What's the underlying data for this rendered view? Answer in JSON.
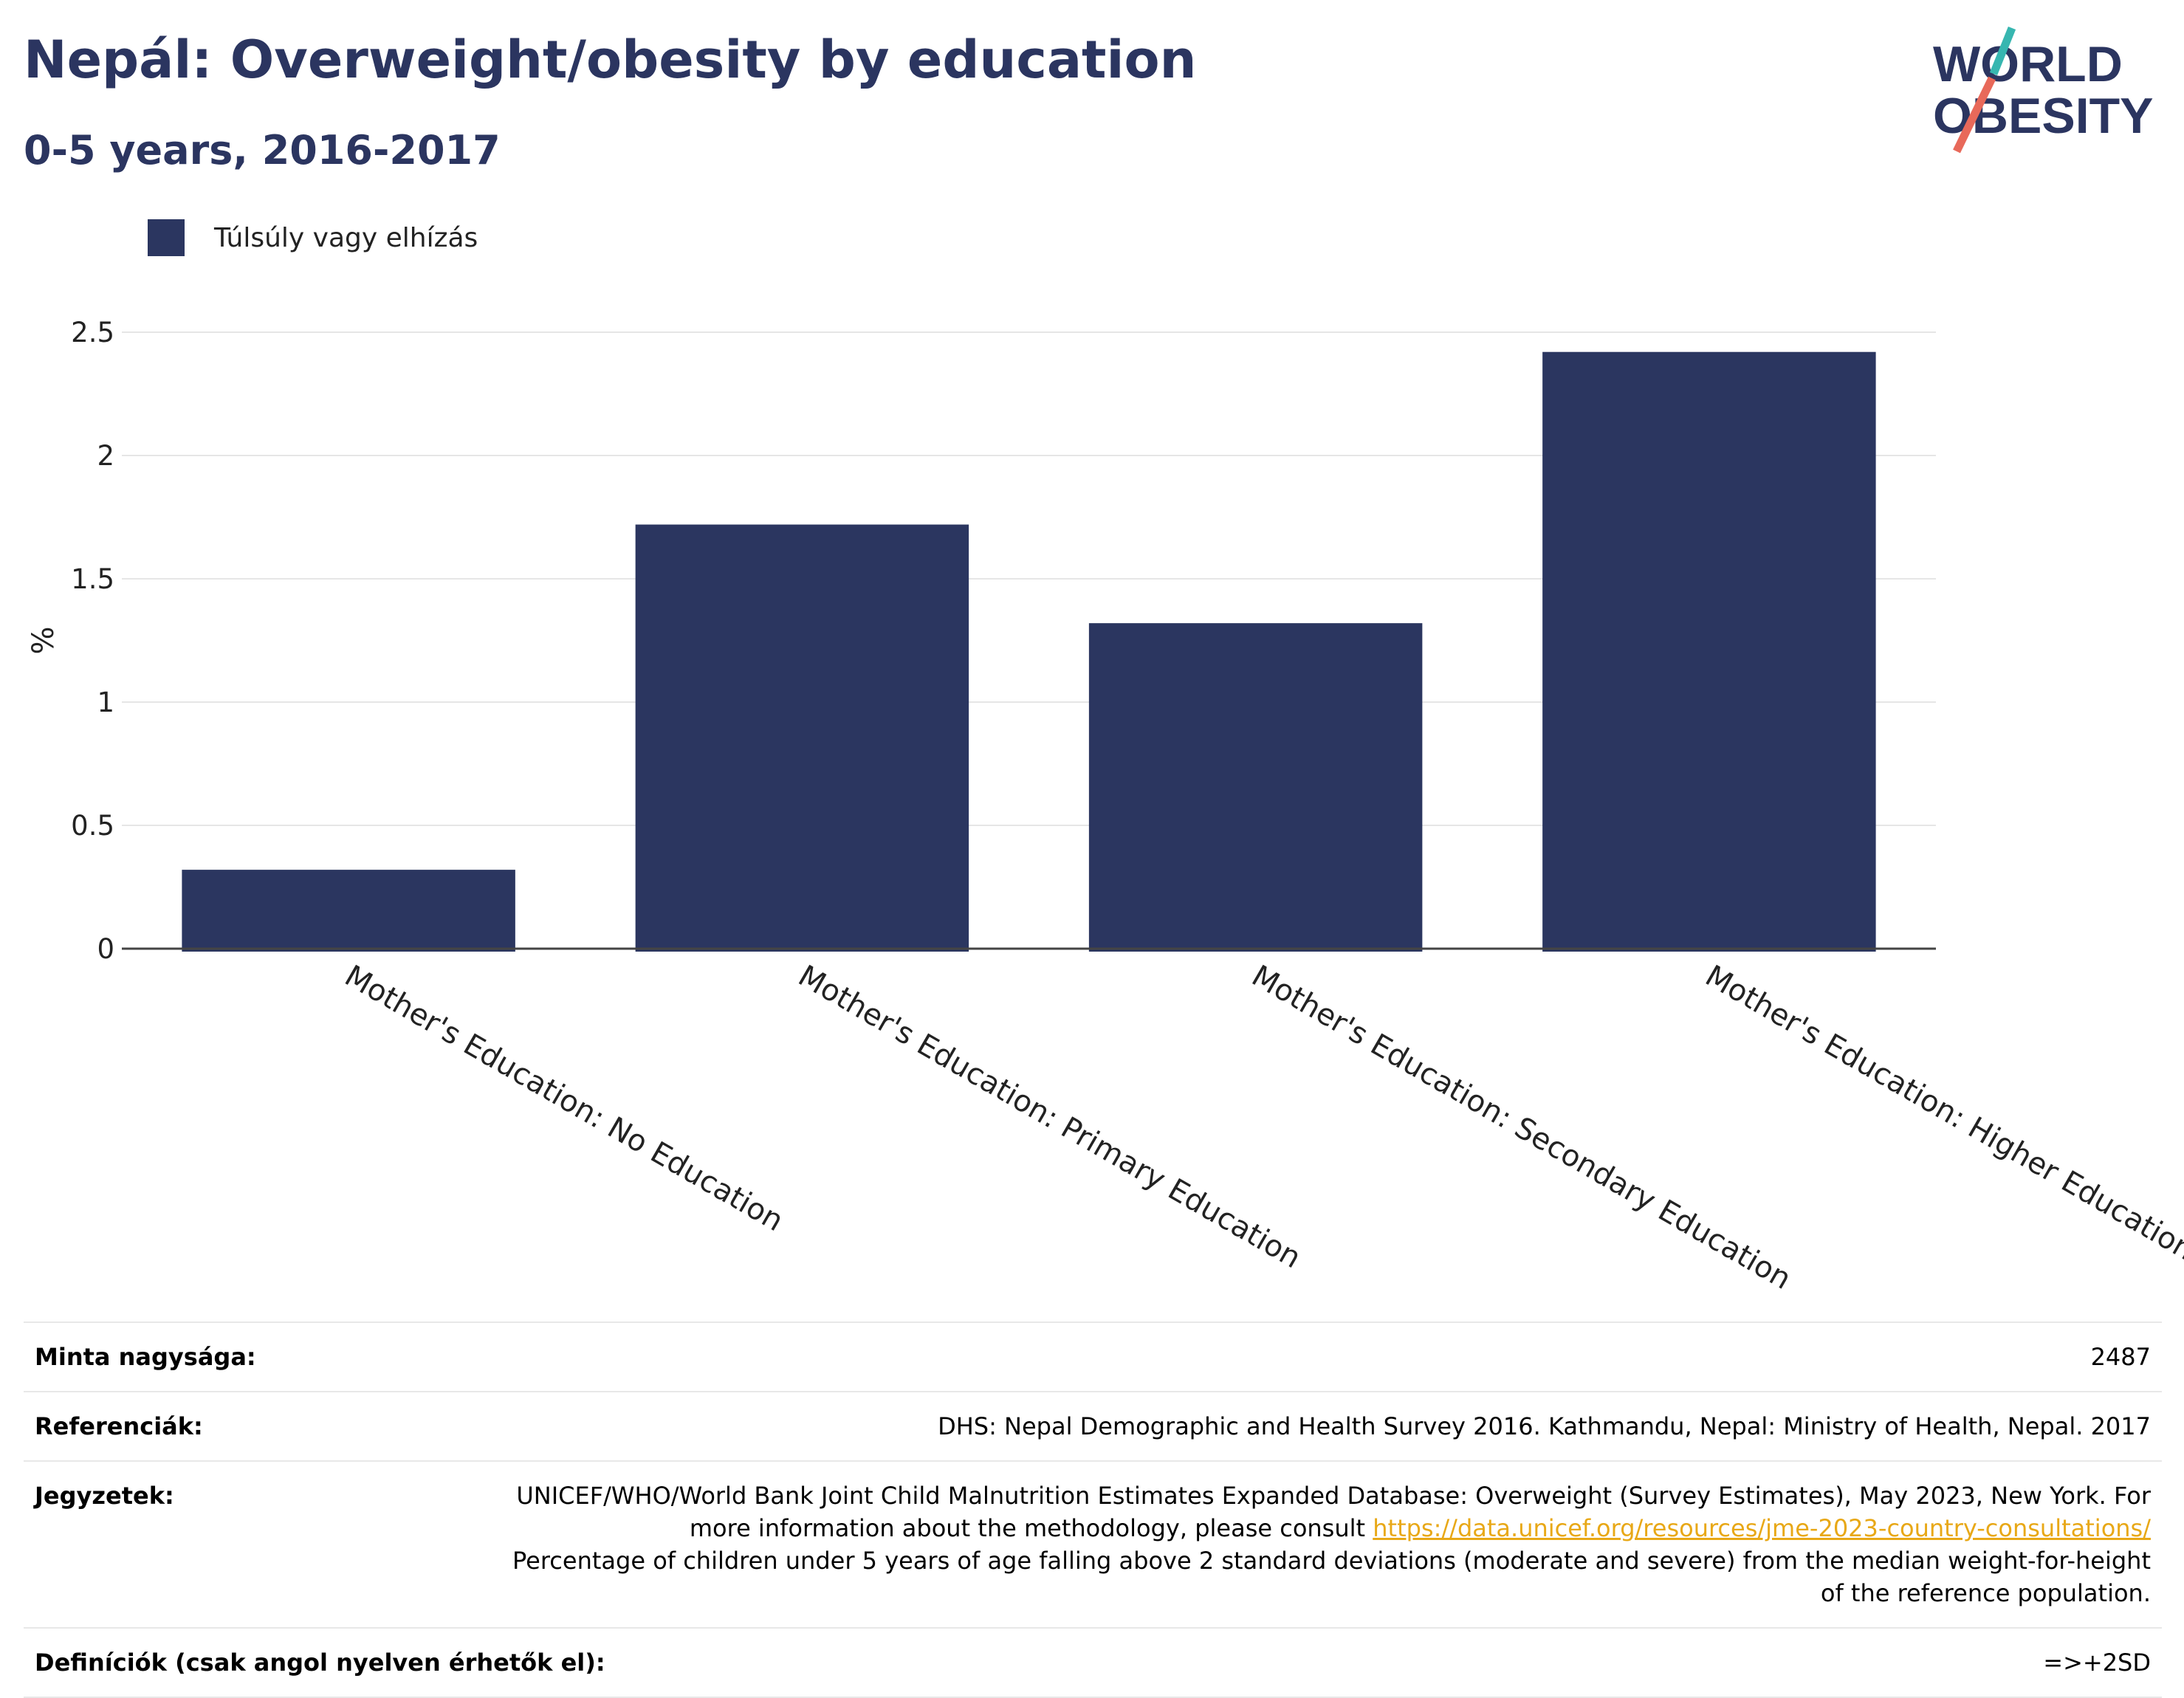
{
  "header": {
    "title": "Nepál: Overweight/obesity by education",
    "subtitle": "0-5 years, 2016-2017"
  },
  "logo": {
    "line1": "WORLD",
    "line2": "OBESITY",
    "accent_teal": "#37b6b0",
    "accent_coral": "#e8695a"
  },
  "legend": {
    "label": "Túlsúly vagy elhízás",
    "color": "#2b3660"
  },
  "chart_data": {
    "type": "bar",
    "categories": [
      "Mother's Education: No Education",
      "Mother's Education: Primary Education",
      "Mother's Education: Secondary Education",
      "Mother's Education: Higher Education"
    ],
    "series": [
      {
        "name": "Túlsúly vagy elhízás",
        "values": [
          0.32,
          1.72,
          1.32,
          2.42
        ]
      }
    ],
    "ylabel": "%",
    "ylim": [
      0,
      2.5
    ],
    "yticks": [
      "0",
      "0.5",
      "1",
      "1.5",
      "2",
      "2.5"
    ],
    "grid": true,
    "legend_position": "top-left",
    "bar_color": "#2b3660"
  },
  "info": {
    "sample_label": "Minta nagysága:",
    "sample_value": "2487",
    "references_label": "Referenciák:",
    "references_value": "DHS: Nepal Demographic and Health Survey 2016. Kathmandu, Nepal: Ministry of Health, Nepal. 2017",
    "notes_label": "Jegyzetek:",
    "notes_text1": "UNICEF/WHO/World Bank Joint Child Malnutrition Estimates Expanded Database: Overweight (Survey Estimates), May 2023, New York. For more information about the methodology, please consult ",
    "notes_link": "https://data.unicef.org/resources/jme-2023-country-consultations/",
    "notes_text2": "Percentage of children under 5 years of age falling above 2 standard deviations (moderate and severe) from the median weight-for-height of the reference population.",
    "definitions_label": "Definíciók (csak angol nyelven érhetők el):",
    "definitions_value": "=>+2SD"
  }
}
